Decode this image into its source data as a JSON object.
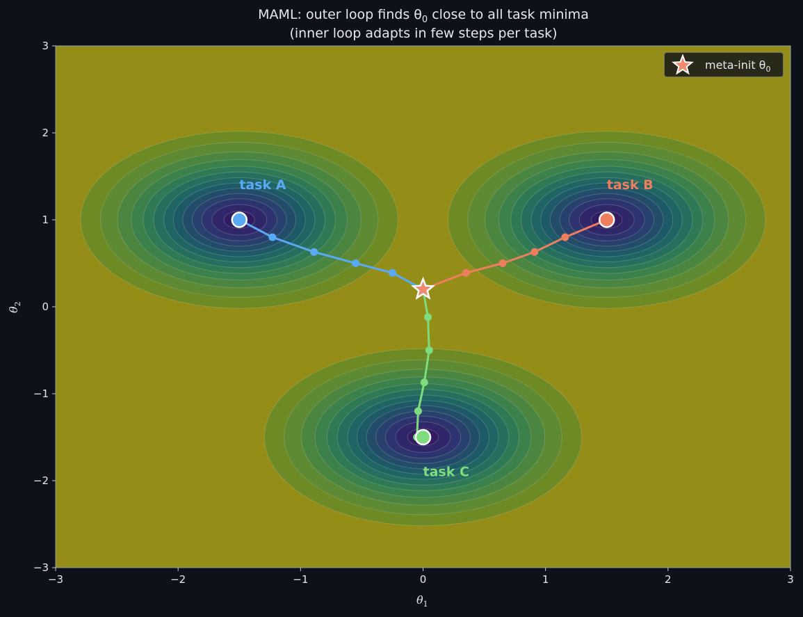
{
  "chart_data": {
    "type": "contour",
    "title_line1": "MAML: outer loop finds θ",
    "title_sub": "0",
    "title_line1_tail": " close to all task minima",
    "title_line2": "(inner loop adapts in few steps per task)",
    "xlabel": "θ",
    "xlabel_sub": "1",
    "ylabel": "θ",
    "ylabel_sub": "2",
    "xlim": [
      -3,
      3
    ],
    "ylim": [
      -3,
      3
    ],
    "xticks": [
      -3,
      -2,
      -1,
      0,
      1,
      2,
      3
    ],
    "yticks": [
      -3,
      -2,
      -1,
      0,
      1,
      2,
      3
    ],
    "tick_labels_x": [
      "−3",
      "−2",
      "−1",
      "0",
      "1",
      "2",
      "3"
    ],
    "tick_labels_y": [
      "−3",
      "−2",
      "−1",
      "0",
      "1",
      "2",
      "3"
    ],
    "grid": false,
    "legend": {
      "placement": "top-right",
      "entries": [
        {
          "label": "meta-init θ",
          "label_sub": "0",
          "marker": "star",
          "color": "#f08a70"
        }
      ]
    },
    "meta_init": {
      "x": 0.0,
      "y": 0.2
    },
    "tasks": [
      {
        "name": "task A",
        "color": "#5aa9f5",
        "minimum": [
          -1.5,
          1.0
        ],
        "label_pos": [
          -1.5,
          1.4
        ],
        "path": [
          [
            0.0,
            0.2
          ],
          [
            -0.25,
            0.39
          ],
          [
            -0.55,
            0.5
          ],
          [
            -0.89,
            0.63
          ],
          [
            -1.23,
            0.8
          ],
          [
            -1.5,
            1.0
          ]
        ]
      },
      {
        "name": "task B",
        "color": "#ee7e5e",
        "minimum": [
          1.5,
          1.0
        ],
        "label_pos": [
          1.5,
          1.4
        ],
        "path": [
          [
            0.0,
            0.2
          ],
          [
            0.35,
            0.39
          ],
          [
            0.65,
            0.5
          ],
          [
            0.91,
            0.63
          ],
          [
            1.16,
            0.8
          ],
          [
            1.5,
            1.0
          ]
        ]
      },
      {
        "name": "task C",
        "color": "#7ddc7d",
        "minimum": [
          0.0,
          -1.5
        ],
        "label_pos": [
          0.0,
          -1.9
        ],
        "path": [
          [
            0.0,
            0.2
          ],
          [
            0.04,
            -0.12
          ],
          [
            0.05,
            -0.5
          ],
          [
            0.01,
            -0.87
          ],
          [
            -0.04,
            -1.2
          ],
          [
            -0.05,
            -1.5
          ],
          [
            0.0,
            -1.5
          ]
        ]
      }
    ],
    "loss_surface": {
      "colormap": "viridis",
      "basin_width": 0.55,
      "background_color": "#948e19"
    }
  }
}
